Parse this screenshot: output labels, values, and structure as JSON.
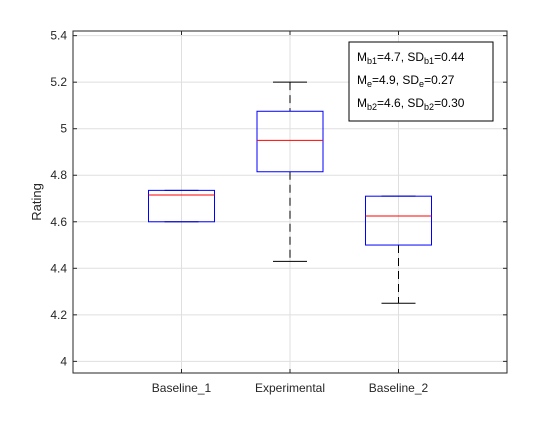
{
  "chart_data": {
    "type": "box",
    "title": "",
    "xlabel": "",
    "ylabel": "Rating",
    "ylim": [
      3.95,
      5.42
    ],
    "yticks": [
      4,
      4.2,
      4.4,
      4.6,
      4.8,
      5,
      5.2,
      5.4
    ],
    "grid": true,
    "categories": [
      "Baseline_1",
      "Experimental",
      "Baseline_2"
    ],
    "boxes": [
      {
        "category": "Baseline_1",
        "q1": 4.6,
        "median": 4.715,
        "q3": 4.735,
        "whisker_low": 4.6,
        "whisker_high": 4.735
      },
      {
        "category": "Experimental",
        "q1": 4.815,
        "median": 4.95,
        "q3": 5.075,
        "whisker_low": 4.43,
        "whisker_high": 5.2
      },
      {
        "category": "Baseline_2",
        "q1": 4.5,
        "median": 4.625,
        "q3": 4.71,
        "whisker_low": 4.25,
        "whisker_high": 4.71
      }
    ],
    "annotation": {
      "placement": "top-right",
      "lines": [
        [
          {
            "t": "M",
            "sub": false
          },
          {
            "t": "b1",
            "sub": true
          },
          {
            "t": "=4.7, SD",
            "sub": false
          },
          {
            "t": "b1",
            "sub": true
          },
          {
            "t": "=0.44",
            "sub": false
          }
        ],
        [
          {
            "t": "M",
            "sub": false
          },
          {
            "t": "e",
            "sub": true
          },
          {
            "t": "=4.9, SD",
            "sub": false
          },
          {
            "t": "e",
            "sub": true
          },
          {
            "t": "=0.27",
            "sub": false
          }
        ],
        [
          {
            "t": "M",
            "sub": false
          },
          {
            "t": "b2",
            "sub": true
          },
          {
            "t": "=4.6, SD",
            "sub": false
          },
          {
            "t": "b2",
            "sub": true
          },
          {
            "t": "=0.30",
            "sub": false
          }
        ]
      ]
    },
    "colors": {
      "box": "#0000ff",
      "median": "#ff0000",
      "whisker": "#000000",
      "axis": "#262626",
      "grid": "#dfdfdf"
    }
  }
}
